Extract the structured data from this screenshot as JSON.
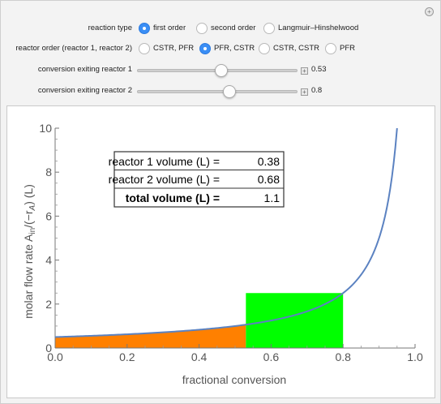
{
  "controls": {
    "reaction_type": {
      "label": "reaction type",
      "options": [
        "first order",
        "second order",
        "Langmuir–Hinshelwood"
      ],
      "selected": 0
    },
    "reactor_order": {
      "label": "reactor order (reactor 1, reactor 2)",
      "options": [
        "CSTR, PFR",
        "PFR, CSTR",
        "CSTR, CSTR",
        "PFR"
      ],
      "selected": 1
    },
    "conversion_1": {
      "label": "conversion exiting reactor 1",
      "value": 0.53,
      "value_text": "0.53"
    },
    "conversion_2": {
      "label": "conversion exiting reactor 2",
      "value": 0.8,
      "value_text": "0.8"
    }
  },
  "results": {
    "row1_label": "reactor 1 volume (L) =",
    "row1_value": "0.38",
    "row2_label": "reactor 2 volume (L) =",
    "row2_value": "0.68",
    "total_label": "total volume (L) =",
    "total_value": "1.1"
  },
  "chart_data": {
    "type": "area",
    "xlabel": "fractional conversion",
    "ylabel_main": "molar flow rate A",
    "ylabel_sub": "in",
    "ylabel_rest": "/(−r",
    "ylabel_sub2": "A",
    "ylabel_end": ") (L)",
    "xlim": [
      0,
      1
    ],
    "ylim": [
      0,
      10
    ],
    "xticks": [
      "0.0",
      "0.2",
      "0.4",
      "0.6",
      "0.8",
      "1.0"
    ],
    "yticks": [
      "0",
      "2",
      "4",
      "6",
      "8",
      "10"
    ],
    "curve": {
      "formula": "0.5/(1-x)",
      "color": "#5b82c1"
    },
    "pfr_region": {
      "x_from": 0.0,
      "x_to": 0.53,
      "color": "#ff8000"
    },
    "cstr_region": {
      "x_from": 0.53,
      "x_to": 0.8,
      "height": 2.5,
      "color": "#00ff00"
    }
  }
}
